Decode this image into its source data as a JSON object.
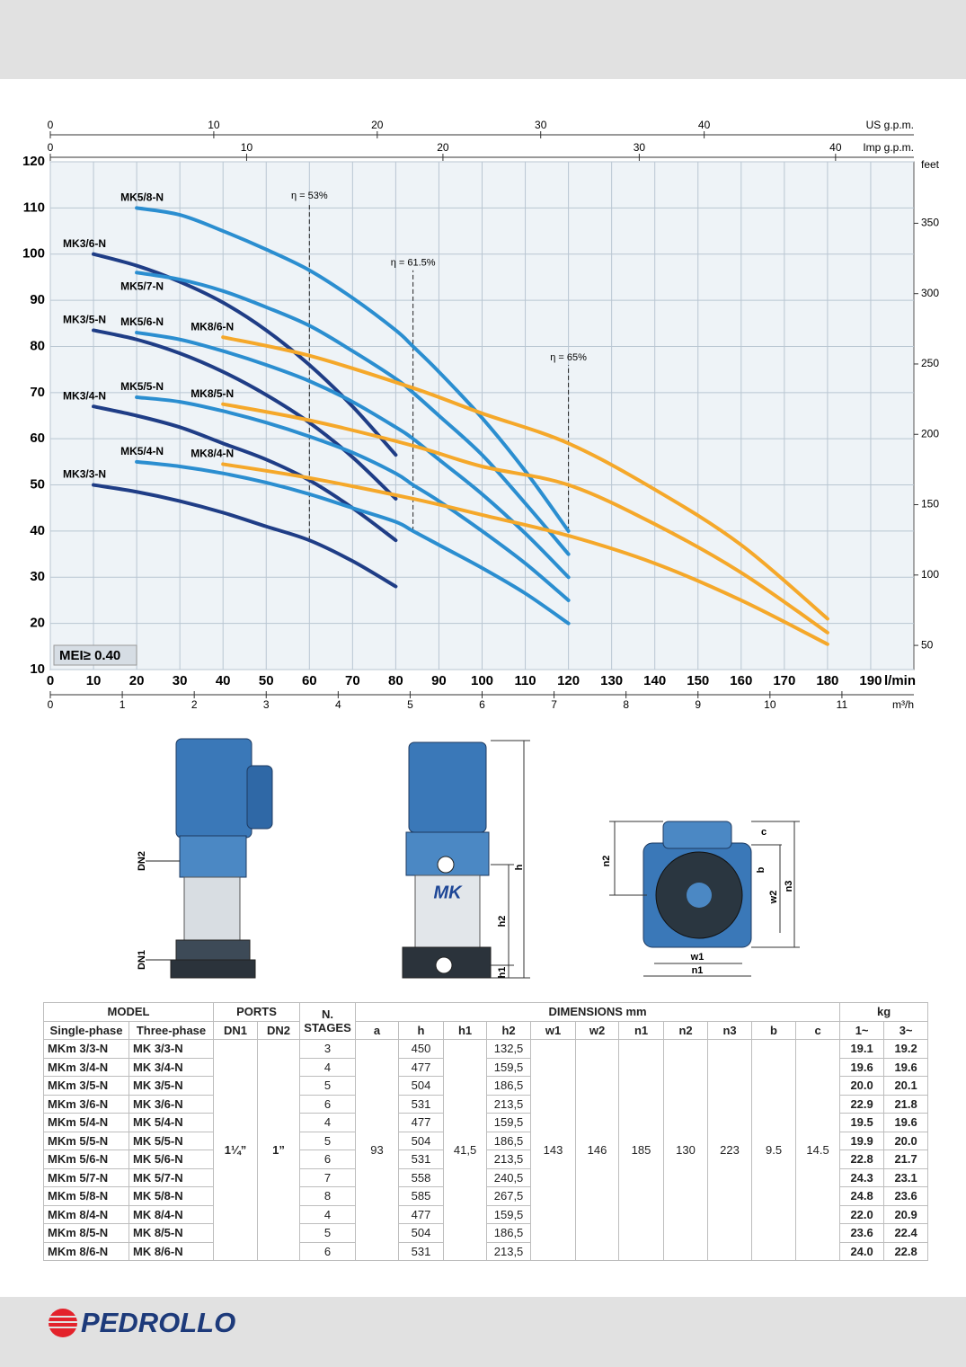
{
  "chart_data": {
    "type": "line",
    "logo": "MK",
    "xlabel": "l/min",
    "xlim": [
      0,
      200
    ],
    "xticks": [
      0,
      10,
      20,
      30,
      40,
      50,
      60,
      70,
      80,
      90,
      100,
      110,
      120,
      130,
      140,
      150,
      160,
      170,
      180,
      190
    ],
    "ylim": [
      10,
      120
    ],
    "yticks": [
      10,
      20,
      30,
      40,
      50,
      60,
      70,
      80,
      90,
      100,
      110,
      120
    ],
    "y2label": "feet",
    "y2lim": [
      32.81,
      393.7
    ],
    "y2ticks": [
      50,
      100,
      150,
      200,
      250,
      300,
      350
    ],
    "top_axes": [
      {
        "label": "US g.p.m.",
        "lim": [
          0,
          52.83
        ],
        "ticks": [
          0,
          10,
          20,
          30,
          40
        ]
      },
      {
        "label": "Imp g.p.m.",
        "lim": [
          0,
          43.99
        ],
        "ticks": [
          0,
          10,
          20,
          30,
          40
        ]
      }
    ],
    "bottom_axis2": {
      "label": "m³/h",
      "lim": [
        0,
        12
      ],
      "ticks": [
        0,
        1,
        2,
        3,
        4,
        5,
        6,
        7,
        8,
        9,
        10,
        11
      ]
    },
    "grid": true,
    "annotation": "MEI≥ 0.40",
    "efficiency_lines": [
      {
        "label": "η = 53%",
        "x": 60,
        "y_from": 38,
        "y_to": 111
      },
      {
        "label": "η = 61.5%",
        "x": 84,
        "y_from": 40,
        "y_to": 96.5
      },
      {
        "label": "η = 65%",
        "x": 120,
        "y_from": 40,
        "y_to": 76
      }
    ],
    "series": [
      {
        "name": "MK3/3-N",
        "color": "#1f3d86",
        "x": [
          10,
          20,
          30,
          40,
          50,
          60,
          70,
          80
        ],
        "values": [
          50,
          48.5,
          46.5,
          44,
          41,
          38,
          33.5,
          28
        ]
      },
      {
        "name": "MK3/4-N",
        "color": "#1f3d86",
        "x": [
          10,
          20,
          30,
          40,
          50,
          60,
          70,
          80
        ],
        "values": [
          67,
          65,
          62.5,
          59,
          55.5,
          51,
          45,
          38
        ]
      },
      {
        "name": "MK3/5-N",
        "color": "#1f3d86",
        "x": [
          10,
          20,
          30,
          40,
          50,
          60,
          70,
          80
        ],
        "values": [
          83.5,
          81.5,
          78.5,
          74.5,
          69.5,
          63.5,
          56,
          47
        ]
      },
      {
        "name": "MK3/6-N",
        "color": "#1f3d86",
        "x": [
          10,
          20,
          30,
          40,
          50,
          60,
          70,
          80
        ],
        "values": [
          100,
          97.5,
          94,
          89.5,
          83.5,
          76,
          67,
          56.5
        ]
      },
      {
        "name": "MK5/4-N",
        "color": "#2b8ed0",
        "x": [
          20,
          30,
          40,
          50,
          60,
          70,
          80,
          84,
          90,
          100,
          110,
          120
        ],
        "values": [
          55,
          54,
          52.5,
          50.5,
          48,
          45,
          42,
          40,
          37,
          32,
          26.5,
          20
        ]
      },
      {
        "name": "MK5/5-N",
        "color": "#2b8ed0",
        "x": [
          20,
          30,
          40,
          50,
          60,
          70,
          80,
          84,
          90,
          100,
          110,
          120
        ],
        "values": [
          69,
          68,
          66,
          63.5,
          60.5,
          57,
          52.5,
          50,
          46.5,
          40,
          33,
          25
        ]
      },
      {
        "name": "MK5/6-N",
        "color": "#2b8ed0",
        "x": [
          20,
          30,
          40,
          50,
          60,
          70,
          80,
          84,
          90,
          100,
          110,
          120
        ],
        "values": [
          83,
          81.5,
          79,
          76,
          72.5,
          68,
          62.5,
          60,
          55.5,
          48,
          39.5,
          30
        ]
      },
      {
        "name": "MK5/7-N",
        "color": "#2b8ed0",
        "x": [
          20,
          30,
          40,
          50,
          60,
          70,
          80,
          84,
          90,
          100,
          110,
          120
        ],
        "values": [
          96,
          94.5,
          92,
          88.5,
          84.5,
          79,
          73,
          70,
          65,
          56.5,
          46,
          35
        ]
      },
      {
        "name": "MK5/8-N",
        "color": "#2b8ed0",
        "x": [
          20,
          30,
          40,
          50,
          60,
          70,
          80,
          84,
          90,
          100,
          110,
          120
        ],
        "values": [
          110,
          108.5,
          105,
          101,
          96.5,
          90.5,
          83.5,
          80,
          74.5,
          64.5,
          53,
          40
        ]
      },
      {
        "name": "MK8/4-N",
        "color": "#f5a82a",
        "x": [
          40,
          60,
          84,
          100,
          120,
          140,
          160,
          180
        ],
        "values": [
          54.5,
          51.5,
          47,
          43.5,
          39,
          33,
          25,
          15.5
        ]
      },
      {
        "name": "MK8/5-N",
        "color": "#f5a82a",
        "x": [
          40,
          60,
          84,
          100,
          120,
          140,
          160,
          180
        ],
        "values": [
          67.5,
          64,
          58.5,
          54,
          50,
          41.5,
          31,
          18
        ]
      },
      {
        "name": "MK8/6-N",
        "color": "#f5a82a",
        "x": [
          40,
          60,
          84,
          100,
          120,
          140,
          160,
          180
        ],
        "values": [
          82,
          78,
          71,
          65.5,
          59,
          49,
          37,
          21
        ]
      }
    ]
  },
  "drawings": {
    "side": [
      "DN2",
      "DN1"
    ],
    "front": [
      "h",
      "h2",
      "h1"
    ],
    "front_logo": "MK",
    "top": [
      "c",
      "n2",
      "b",
      "w2",
      "n3",
      "w1",
      "n1"
    ]
  },
  "table": {
    "header": {
      "model": "MODEL",
      "ports": "PORTS",
      "stages": "N. STAGES",
      "dimensions": "DIMENSIONS mm",
      "kg": "kg",
      "columns": [
        "Single-phase",
        "Three-phase",
        "DN1",
        "DN2",
        "a",
        "h",
        "h1",
        "h2",
        "w1",
        "w2",
        "n1",
        "n2",
        "n3",
        "b",
        "c",
        "1~",
        "3~"
      ]
    },
    "shared": {
      "DN1": "1¼”",
      "DN2": "1”",
      "a": "93",
      "h1": "41,5",
      "w1": "143",
      "w2": "146",
      "n1": "185",
      "n2": "130",
      "n3": "223",
      "b": "9.5",
      "c": "14.5"
    },
    "rows": [
      [
        "MKm 3/3-N",
        "MK 3/3-N",
        "3",
        "450",
        "132,5",
        "19.1",
        "19.2"
      ],
      [
        "MKm 3/4-N",
        "MK 3/4-N",
        "4",
        "477",
        "159,5",
        "19.6",
        "19.6"
      ],
      [
        "MKm 3/5-N",
        "MK 3/5-N",
        "5",
        "504",
        "186,5",
        "20.0",
        "20.1"
      ],
      [
        "MKm 3/6-N",
        "MK 3/6-N",
        "6",
        "531",
        "213,5",
        "22.9",
        "21.8"
      ],
      [
        "MKm 5/4-N",
        "MK 5/4-N",
        "4",
        "477",
        "159,5",
        "19.5",
        "19.6"
      ],
      [
        "MKm 5/5-N",
        "MK 5/5-N",
        "5",
        "504",
        "186,5",
        "19.9",
        "20.0"
      ],
      [
        "MKm 5/6-N",
        "MK 5/6-N",
        "6",
        "531",
        "213,5",
        "22.8",
        "21.7"
      ],
      [
        "MKm 5/7-N",
        "MK 5/7-N",
        "7",
        "558",
        "240,5",
        "24.3",
        "23.1"
      ],
      [
        "MKm 5/8-N",
        "MK 5/8-N",
        "8",
        "585",
        "267,5",
        "24.8",
        "23.6"
      ],
      [
        "MKm 8/4-N",
        "MK 8/4-N",
        "4",
        "477",
        "159,5",
        "22.0",
        "20.9"
      ],
      [
        "MKm 8/5-N",
        "MK 8/5-N",
        "5",
        "504",
        "186,5",
        "23.6",
        "22.4"
      ],
      [
        "MKm 8/6-N",
        "MK 8/6-N",
        "6",
        "531",
        "213,5",
        "24.0",
        "22.8"
      ]
    ]
  },
  "footer": {
    "brand": "PEDROLLO"
  }
}
